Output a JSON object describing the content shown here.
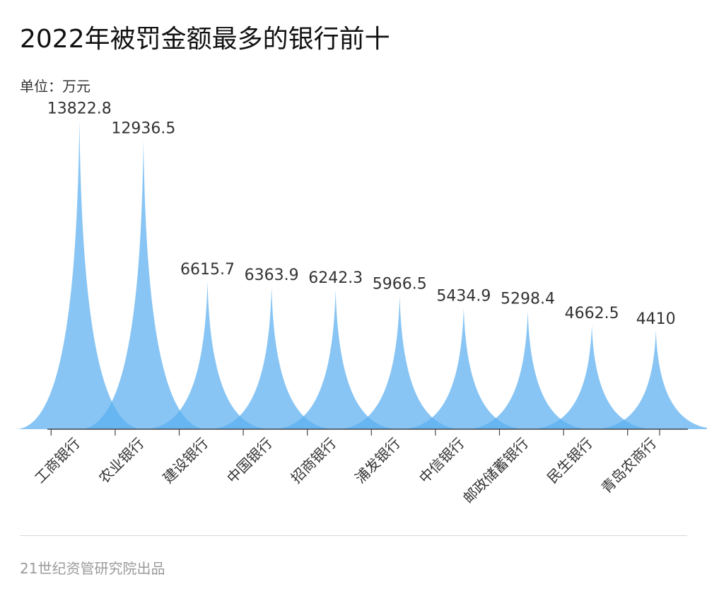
{
  "title": "2022年被罚金额最多的银行前十",
  "unit_label": "单位：万元",
  "source": "21世纪资管研究院出品",
  "colors": {
    "fill": "#5aaef0",
    "axis": "#444444",
    "text": "#333333"
  },
  "chart_data": {
    "type": "area",
    "shape": "spike",
    "title": "2022年被罚金额最多的银行前十",
    "ylabel": "单位：万元",
    "xlabel": "",
    "ylim": [
      0,
      14000
    ],
    "grid": false,
    "legend": "none",
    "categories": [
      "工商银行",
      "农业银行",
      "建设银行",
      "中国银行",
      "招商银行",
      "浦发银行",
      "中信银行",
      "邮政储蓄银行",
      "民生银行",
      "青岛农商行"
    ],
    "values": [
      13822.8,
      12936.5,
      6615.7,
      6363.9,
      6242.3,
      5966.5,
      5434.9,
      5298.4,
      4662.5,
      4410
    ],
    "value_labels": [
      "13822.8",
      "12936.5",
      "6615.7",
      "6363.9",
      "6242.3",
      "5966.5",
      "5434.9",
      "5298.4",
      "4662.5",
      "4410"
    ]
  }
}
